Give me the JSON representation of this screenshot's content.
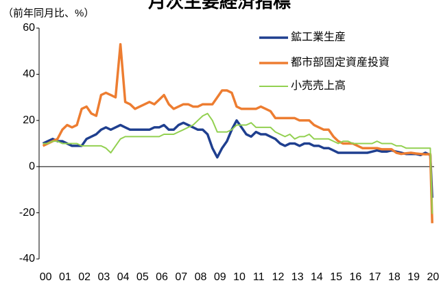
{
  "chart_data": {
    "type": "line",
    "title": "月次主要経済指標",
    "y_label": "（前年同月比、%）",
    "x": [
      0,
      0.25,
      0.5,
      0.75,
      1,
      1.25,
      1.5,
      1.75,
      2,
      2.25,
      2.5,
      2.75,
      3,
      3.25,
      3.5,
      3.75,
      4,
      4.25,
      4.5,
      4.75,
      5,
      5.25,
      5.5,
      5.75,
      6,
      6.25,
      6.5,
      6.75,
      7,
      7.25,
      7.5,
      7.75,
      8,
      8.25,
      8.5,
      8.75,
      9,
      9.25,
      9.5,
      9.75,
      10,
      10.25,
      10.5,
      10.75,
      11,
      11.25,
      11.5,
      11.75,
      12,
      12.25,
      12.5,
      12.75,
      13,
      13.25,
      13.5,
      13.75,
      14,
      14.25,
      14.5,
      14.75,
      15,
      15.25,
      15.5,
      15.75,
      16,
      16.25,
      16.5,
      16.75,
      17,
      17.25,
      17.5,
      17.75,
      18,
      18.25,
      18.5,
      18.75,
      19,
      19.25,
      19.5,
      19.75,
      20,
      20.1
    ],
    "series": [
      {
        "name": "鉱工業生産",
        "color": "#1f3f8f",
        "values": [
          10,
          11,
          12,
          11,
          11,
          10,
          9,
          9,
          9,
          12,
          13,
          14,
          16,
          17,
          16,
          17,
          18,
          17,
          16,
          16,
          16,
          16,
          16,
          17,
          17,
          18,
          16,
          16,
          18,
          19,
          18,
          17,
          16,
          16,
          14,
          8,
          4,
          8,
          11,
          16,
          20,
          17,
          14,
          13,
          15,
          14,
          14,
          13,
          12,
          10,
          9,
          10,
          10,
          9,
          10,
          10,
          9,
          9,
          8,
          8,
          7,
          6,
          6,
          6,
          6,
          6,
          6,
          6,
          6.5,
          7,
          6.5,
          6.5,
          7,
          6.5,
          6,
          5.5,
          5.5,
          5.5,
          5,
          6,
          5,
          -13.5
        ]
      },
      {
        "name": "都市部固定資産投資",
        "color": "#ed7d31",
        "values": [
          9,
          10,
          11,
          12,
          16,
          18,
          17,
          18,
          25,
          26,
          23,
          22,
          31,
          32,
          31,
          30,
          53,
          28,
          27,
          25,
          26,
          27,
          28,
          27,
          29,
          31,
          27,
          25,
          26,
          27,
          27,
          26,
          26,
          27,
          27,
          27,
          30,
          33,
          33,
          32,
          26,
          25,
          25,
          25,
          25,
          26,
          25,
          24,
          21,
          21,
          21,
          21,
          21,
          20,
          20,
          20,
          18,
          17,
          16,
          16,
          13,
          11,
          10,
          10,
          10,
          9,
          8,
          8,
          8,
          8,
          7.5,
          7.5,
          7.5,
          6,
          5.5,
          5.8,
          6,
          5.7,
          5.5,
          5.3,
          5.4,
          -24.5
        ]
      },
      {
        "name": "小売売上高",
        "color": "#92d050",
        "values": [
          10,
          10,
          11,
          11,
          10,
          10,
          10,
          10,
          9,
          9,
          9,
          9,
          9,
          8,
          6,
          9,
          12,
          13,
          13,
          13,
          13,
          13,
          13,
          13,
          13,
          14,
          14,
          14,
          15,
          16,
          17,
          18,
          20,
          22,
          23,
          20,
          15,
          15,
          15,
          16,
          18,
          18,
          18,
          19,
          17,
          17,
          17,
          17,
          15,
          14,
          13,
          14,
          12,
          13,
          13,
          14,
          12,
          12,
          12,
          12,
          11,
          10,
          11,
          11,
          10,
          10,
          10,
          10,
          10,
          11,
          10,
          10,
          10,
          9,
          9,
          8,
          8,
          8,
          8,
          8,
          8,
          -20.5
        ]
      }
    ],
    "xlim": [
      -0.2,
      20.2
    ],
    "xticks": [
      {
        "value": 0,
        "label": "00"
      },
      {
        "value": 1,
        "label": "01"
      },
      {
        "value": 2,
        "label": "02"
      },
      {
        "value": 3,
        "label": "03"
      },
      {
        "value": 4,
        "label": "04"
      },
      {
        "value": 5,
        "label": "05"
      },
      {
        "value": 6,
        "label": "06"
      },
      {
        "value": 7,
        "label": "07"
      },
      {
        "value": 8,
        "label": "08"
      },
      {
        "value": 9,
        "label": "09"
      },
      {
        "value": 10,
        "label": "10"
      },
      {
        "value": 11,
        "label": "11"
      },
      {
        "value": 12,
        "label": "12"
      },
      {
        "value": 13,
        "label": "13"
      },
      {
        "value": 14,
        "label": "14"
      },
      {
        "value": 15,
        "label": "15"
      },
      {
        "value": 16,
        "label": "16"
      },
      {
        "value": 17,
        "label": "17"
      },
      {
        "value": 18,
        "label": "18"
      },
      {
        "value": 19,
        "label": "19"
      },
      {
        "value": 20,
        "label": "20"
      }
    ],
    "ylim": [
      -40,
      60
    ],
    "yticks": [
      -40,
      -20,
      0,
      20,
      40,
      60
    ],
    "legend": "upper right"
  }
}
